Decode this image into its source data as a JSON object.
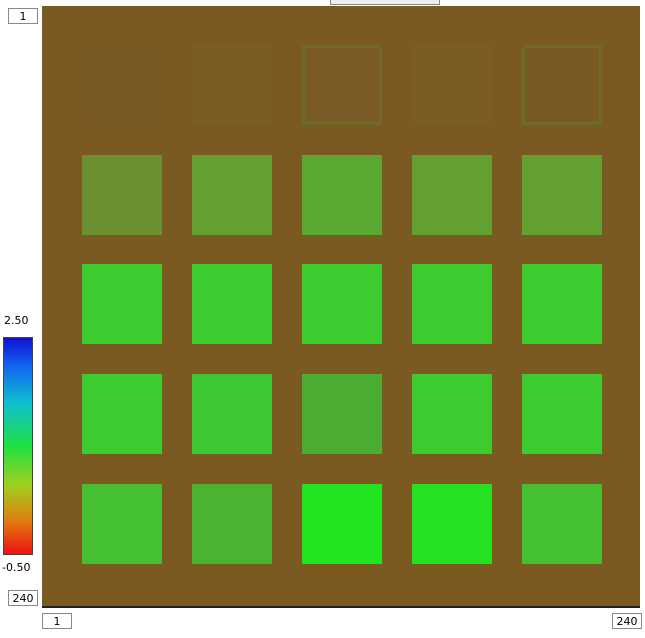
{
  "image_view": {
    "y_axis": {
      "start": "1",
      "end": "240"
    },
    "x_axis": {
      "start": "1",
      "end": "240"
    },
    "colorbar": {
      "max": "2.50",
      "min": "-0.50"
    }
  }
}
